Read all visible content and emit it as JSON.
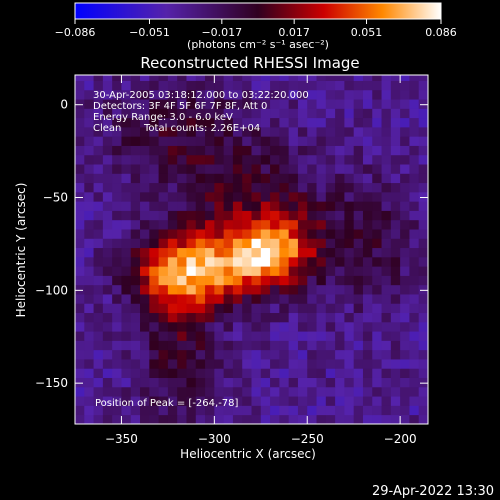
{
  "chart_data": {
    "type": "heatmap",
    "title": "Reconstructed RHESSI Image",
    "xlabel": "Heliocentric X (arcsec)",
    "ylabel": "Heliocentric Y (arcsec)",
    "xlim": [
      -375,
      -185
    ],
    "ylim": [
      -172,
      16
    ],
    "x_ticks": [
      -350,
      -300,
      -250,
      -200
    ],
    "x_tick_labels": [
      "−350",
      "−300",
      "−250",
      "−200"
    ],
    "y_ticks": [
      0,
      -50,
      -100,
      -150
    ],
    "y_tick_labels": [
      "0",
      "−50",
      "−100",
      "−150"
    ],
    "colorbar": {
      "min": -0.086,
      "max": 0.086,
      "ticks": [
        -0.086,
        -0.051,
        -0.017,
        0.017,
        0.051,
        0.086
      ],
      "tick_labels": [
        "−0.086",
        "−0.051",
        "−0.017",
        "0.017",
        "0.051",
        "0.086"
      ],
      "unit_label": "(photons cm⁻² s⁻¹ asec⁻²)"
    },
    "annotations": {
      "time_range": "30-Apr-2005 03:18:12.000 to 03:22:20.000",
      "detectors": "Detectors: 3F 4F 5F 6F 7F 8F, Att 0",
      "energy": "Energy Range: 3.0 - 6.0 keV",
      "algorithm": "Clean",
      "total_counts": "Total counts: 2.26E+04",
      "peak": "Position of Peak = [-264,-78]"
    },
    "peak": [
      -264,
      -78
    ],
    "sources": [
      {
        "x": -300,
        "y": -88,
        "amp": 0.07,
        "sx": 22,
        "sy": 14
      },
      {
        "x": -268,
        "y": -78,
        "amp": 0.08,
        "sx": 16,
        "sy": 12
      },
      {
        "x": -325,
        "y": -93,
        "amp": 0.05,
        "sx": 16,
        "sy": 14
      },
      {
        "x": -280,
        "y": -55,
        "amp": 0.035,
        "sx": 28,
        "sy": 22
      },
      {
        "x": -320,
        "y": -135,
        "amp": 0.035,
        "sx": 14,
        "sy": 28
      },
      {
        "x": -320,
        "y": -15,
        "amp": 0.028,
        "sx": 30,
        "sy": 18
      },
      {
        "x": -215,
        "y": -75,
        "amp": 0.025,
        "sx": 20,
        "sy": 25
      }
    ]
  },
  "footer": {
    "timestamp": "29-Apr-2022 13:30"
  }
}
